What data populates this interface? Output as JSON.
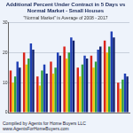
{
  "chart_data": {
    "type": "bar",
    "title": "Additional Percent Under Contract in 5 Days vs Normal Market - Small Houses",
    "subtitle": "\"Normal Market\" is Average of 2008 - 2017",
    "categories": [
      null,
      null,
      null,
      null,
      null,
      null,
      null,
      null,
      null
    ],
    "series": [
      {
        "color": "#d9251d",
        "values": [
          14,
          20,
          12,
          17,
          22,
          15,
          19,
          24,
          10
        ]
      },
      {
        "color": "#f2c500",
        "values": [
          10,
          16,
          9,
          13,
          18,
          12,
          15,
          20,
          8
        ]
      },
      {
        "color": "#2e9e3a",
        "values": [
          12,
          18,
          14,
          15,
          20,
          16,
          17,
          22,
          11
        ]
      },
      {
        "color": "#1f3fb5",
        "values": [
          17,
          23,
          16,
          20,
          25,
          19,
          21,
          27,
          13
        ]
      },
      {
        "color": "#10206a",
        "values": [
          15,
          21,
          13,
          19,
          24,
          18,
          22,
          25,
          12
        ]
      }
    ],
    "ylim": [
      0,
      30
    ],
    "yticks": [
      0,
      10,
      20,
      30
    ],
    "grid": true,
    "tick_labels": "y",
    "annotations": [
      "Compiled by Agents for Home Buyers LLC",
      "www.AgentsForHomeBuyers.com"
    ]
  }
}
